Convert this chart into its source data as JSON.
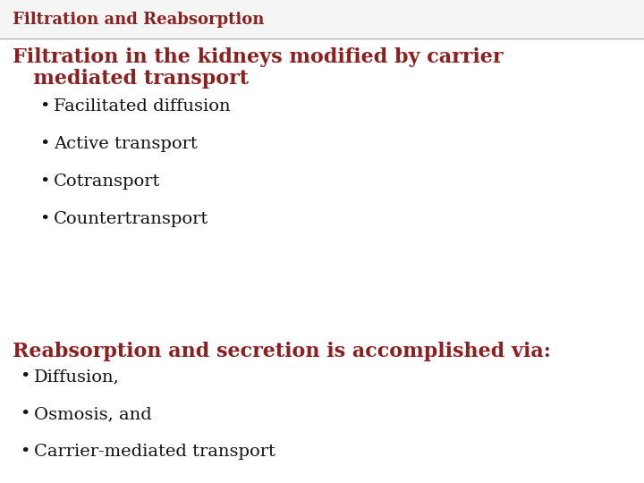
{
  "title": "Filtration and Reabsorption",
  "title_color": "#8B2020",
  "title_fontsize": 13,
  "background_color": "#FFFFFF",
  "header_bg_color": "#F5F5F5",
  "divider_color": "#AAAAAA",
  "heading1_line1": "Filtration in the kidneys modified by carrier",
  "heading1_line2": "   mediated transport",
  "heading1_color": "#8B2020",
  "heading1_fontsize": 16,
  "bullets1": [
    "Facilitated diffusion",
    "Active transport",
    "Cotransport",
    "Countertransport"
  ],
  "bullets1_color": "#111111",
  "bullets1_fontsize": 14,
  "heading2": "Reabsorption and secretion is accomplished via:",
  "heading2_color": "#8B2020",
  "heading2_fontsize": 16,
  "bullets2": [
    "Diffusion,",
    "Osmosis, and",
    "Carrier-mediated transport"
  ],
  "bullets2_color": "#111111",
  "bullets2_fontsize": 14
}
